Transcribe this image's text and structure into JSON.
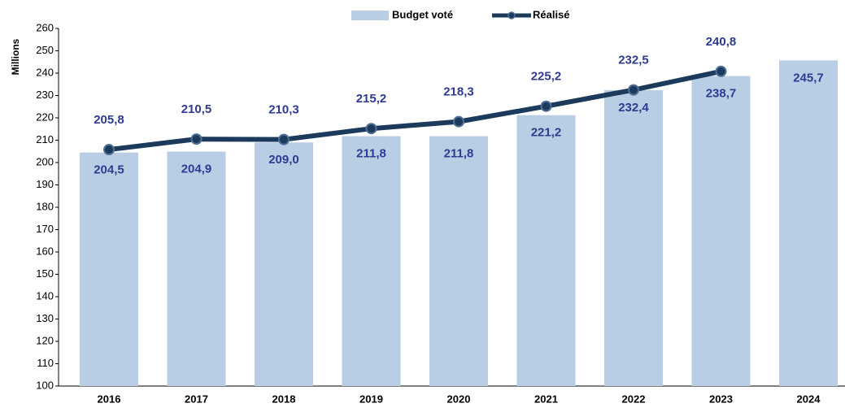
{
  "chart_data": {
    "type": "bar_line",
    "y_axis_label": "Millions",
    "categories": [
      "2016",
      "2017",
      "2018",
      "2019",
      "2020",
      "2021",
      "2022",
      "2023",
      "2024"
    ],
    "series": [
      {
        "name": "Budget voté",
        "type": "bar",
        "color": "#b9cde5",
        "values": [
          204.5,
          204.9,
          209.0,
          211.8,
          211.8,
          221.2,
          232.4,
          238.7,
          245.7
        ],
        "value_labels": [
          "204,5",
          "204,9",
          "209,0",
          "211,8",
          "211,8",
          "221,2",
          "232,4",
          "238,7",
          "245,7"
        ]
      },
      {
        "name": "Réalisé",
        "type": "line",
        "color": "#1b3a5c",
        "values": [
          205.8,
          210.5,
          210.3,
          215.2,
          218.3,
          225.2,
          232.5,
          240.8,
          null
        ],
        "value_labels": [
          "205,8",
          "210,5",
          "210,3",
          "215,2",
          "218,3",
          "225,2",
          "232,5",
          "240,8",
          null
        ]
      }
    ],
    "ylim": [
      100,
      260
    ],
    "yticks": [
      100,
      110,
      120,
      130,
      140,
      150,
      160,
      170,
      180,
      190,
      200,
      210,
      220,
      230,
      240,
      250,
      260
    ],
    "legend": "top"
  }
}
